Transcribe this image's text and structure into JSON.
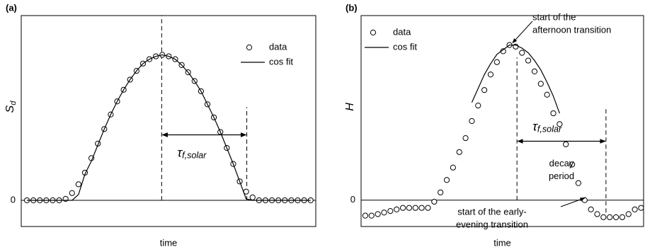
{
  "chart_data": [
    {
      "type": "line",
      "title": "(a)",
      "ylabel": {
        "main": "S",
        "sub": "d"
      },
      "xlabel": "time",
      "x": [
        0,
        1,
        2,
        3,
        4,
        5,
        6,
        7,
        8,
        9,
        10,
        11,
        12,
        13,
        14,
        15,
        16,
        17,
        18,
        19,
        20,
        21,
        22,
        23,
        24,
        25,
        26,
        27,
        28,
        29,
        30,
        31,
        32,
        33,
        34,
        35,
        36,
        37,
        38,
        39,
        40,
        41,
        42,
        43,
        44
      ],
      "xlim": [
        -0.88,
        44.8
      ],
      "ylim": [
        -0.18,
        1.27
      ],
      "yticks": [
        0
      ],
      "grid": true,
      "legend": "upper right",
      "series": [
        {
          "name": "data",
          "color": "#000000",
          "marker": "circle",
          "values": [
            0,
            0,
            0,
            0,
            0,
            0,
            0.01,
            0.05,
            0.11,
            0.19,
            0.29,
            0.39,
            0.49,
            0.59,
            0.68,
            0.76,
            0.83,
            0.89,
            0.94,
            0.97,
            0.99,
            1.0,
            0.99,
            0.97,
            0.93,
            0.88,
            0.82,
            0.75,
            0.66,
            0.57,
            0.47,
            0.36,
            0.25,
            0.13,
            0.06,
            0.02,
            0,
            0,
            0,
            0,
            0,
            0,
            0,
            0,
            0
          ]
        },
        {
          "name": "cos fit",
          "color": "#000000",
          "marker": "none",
          "values": [
            0,
            0,
            0,
            0,
            0,
            0,
            0,
            0,
            0.04,
            0.18,
            0.27,
            0.38,
            0.49,
            0.59,
            0.68,
            0.76,
            0.83,
            0.89,
            0.94,
            0.97,
            0.99,
            1.0,
            0.99,
            0.97,
            0.93,
            0.88,
            0.82,
            0.75,
            0.66,
            0.57,
            0.47,
            0.36,
            0.25,
            0.13,
            0.01,
            0,
            0,
            0,
            0,
            0,
            0,
            0,
            0,
            0,
            0
          ]
        }
      ],
      "vlines": [
        {
          "x": 20.9,
          "from": 0,
          "to": 1.27
        },
        {
          "x": 34.1,
          "from": 0,
          "to": 0.64
        }
      ],
      "span": {
        "from": 20.9,
        "to": 34.1,
        "y": 0.45,
        "label": {
          "main": "τ",
          "sub": "f,solar"
        }
      }
    },
    {
      "type": "line",
      "title": "(b)",
      "ylabel": {
        "main": "H"
      },
      "xlabel": "time",
      "x": [
        0,
        1,
        2,
        3,
        4,
        5,
        6,
        7,
        8,
        9,
        10,
        11,
        12,
        13,
        14,
        15,
        16,
        17,
        18,
        19,
        20,
        21,
        22,
        23,
        24,
        25,
        26,
        27,
        28,
        29,
        30,
        31,
        32,
        33,
        34,
        35,
        36,
        37,
        38,
        39,
        40,
        41,
        42,
        43,
        44
      ],
      "xlim": [
        -0.67,
        44.4
      ],
      "ylim": [
        -0.17,
        1.19
      ],
      "yticks": [
        0
      ],
      "grid": true,
      "legend": "upper left",
      "series": [
        {
          "name": "data",
          "color": "#000000",
          "marker": "circle",
          "values": [
            -0.1,
            -0.1,
            -0.09,
            -0.08,
            -0.07,
            -0.06,
            -0.05,
            -0.05,
            -0.05,
            -0.05,
            -0.05,
            -0.01,
            0.05,
            0.13,
            0.21,
            0.31,
            0.4,
            0.51,
            0.61,
            0.71,
            0.81,
            0.89,
            0.96,
            1.0,
            0.99,
            0.95,
            0.9,
            0.83,
            0.75,
            0.68,
            0.56,
            0.49,
            0.36,
            0.23,
            0.11,
            0,
            -0.06,
            -0.09,
            -0.11,
            -0.11,
            -0.11,
            -0.11,
            -0.09,
            -0.06,
            -0.05
          ]
        },
        {
          "name": "cos fit",
          "color": "#000000",
          "marker": "none",
          "values": [
            null,
            null,
            null,
            null,
            null,
            null,
            null,
            null,
            null,
            null,
            null,
            null,
            null,
            null,
            null,
            null,
            null,
            0.63,
            0.72,
            0.81,
            0.88,
            0.94,
            0.97,
            1.0,
            1.0,
            0.98,
            0.95,
            0.9,
            0.84,
            0.76,
            0.67,
            0.56,
            null,
            null,
            null,
            null,
            null,
            null,
            null,
            null,
            null,
            null,
            null,
            null,
            null
          ]
        }
      ],
      "vlines": [
        {
          "x": 24.2,
          "from": 0,
          "to": 0.92
        },
        {
          "x": 38.4,
          "from": -0.08,
          "to": 0.6
        }
      ],
      "span": {
        "from": 24.2,
        "to": 38.4,
        "y": 0.38,
        "label": {
          "main": "τ",
          "sub": "f,solar"
        },
        "note": [
          "decay",
          "period"
        ]
      },
      "notes": [
        {
          "lines": [
            "start of the",
            "afternoon transition"
          ],
          "x": 23.5,
          "y": 1.0
        },
        {
          "lines": [
            "start of the early-",
            "evening transition"
          ],
          "x": 35,
          "y": 0
        }
      ]
    }
  ]
}
